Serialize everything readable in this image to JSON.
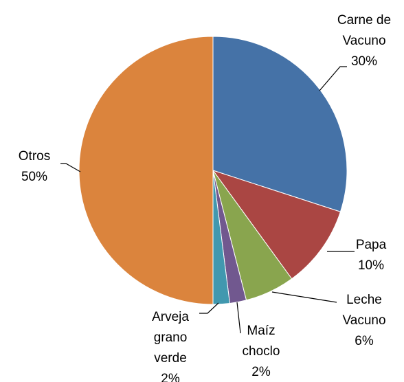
{
  "chart_data": {
    "type": "pie",
    "categories": [
      "Carne de Vacuno",
      "Papa",
      "Leche Vacuno",
      "Maíz choclo",
      "Arveja grano verde",
      "Otros"
    ],
    "values": [
      30,
      10,
      6,
      2,
      2,
      50
    ],
    "value_labels": [
      "30%",
      "10%",
      "6%",
      "2%",
      "2%",
      "50%"
    ],
    "colors": [
      "#4572A7",
      "#AA4643",
      "#89A54E",
      "#71588F",
      "#4198AF",
      "#DB843D"
    ]
  }
}
